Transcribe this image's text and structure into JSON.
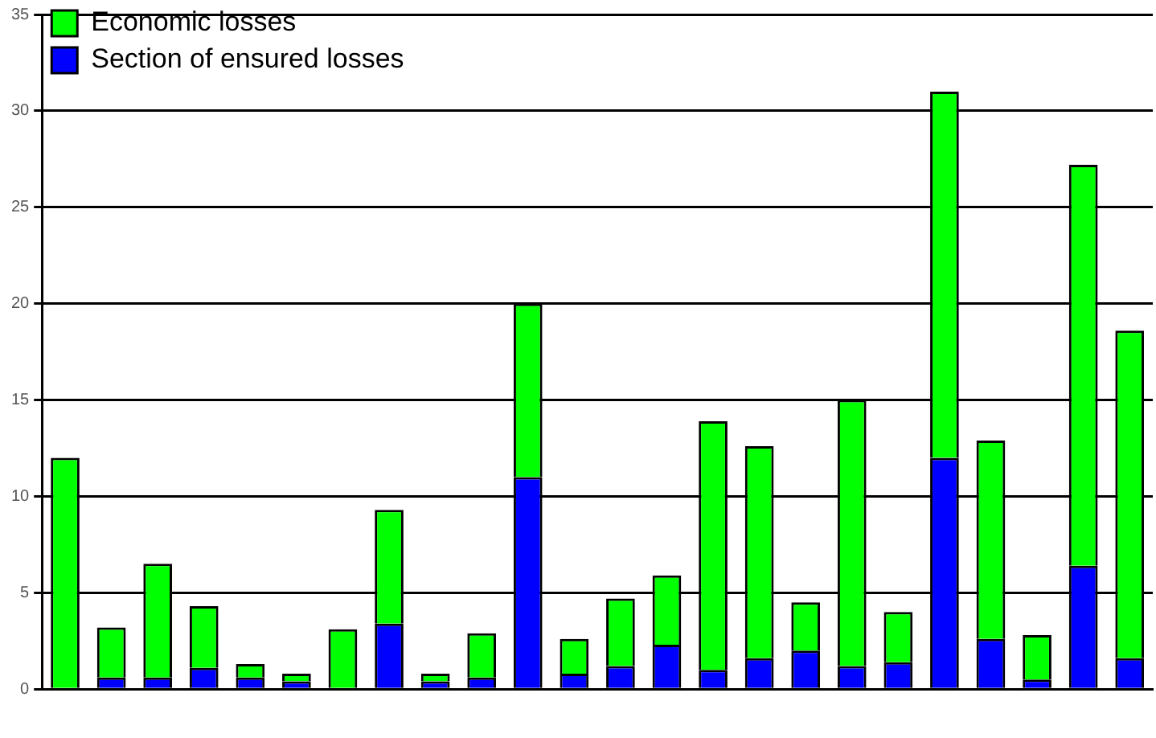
{
  "chart_data": {
    "type": "bar",
    "stacked": true,
    "categories": [
      null,
      null,
      null,
      null,
      null,
      null,
      null,
      null,
      null,
      null,
      null,
      null,
      null,
      null,
      null,
      null,
      null,
      null,
      null,
      null,
      null,
      null,
      null,
      null
    ],
    "series": [
      {
        "name": "Section of ensured losses",
        "color": "#0000ff",
        "values": [
          null,
          0.6,
          0.6,
          1.1,
          0.6,
          0.4,
          null,
          3.4,
          0.4,
          0.6,
          11,
          0.8,
          1.2,
          2.3,
          1.0,
          1.6,
          2.0,
          1.2,
          1.4,
          12,
          2.6,
          0.5,
          6.4,
          1.6
        ]
      },
      {
        "name": "Economic losses",
        "color": "#00ff00",
        "values": [
          12,
          2.6,
          5.9,
          3.2,
          0.7,
          0.4,
          3.1,
          5.9,
          0.4,
          2.3,
          9,
          1.8,
          3.5,
          3.6,
          12.9,
          11,
          2.5,
          13.8,
          2.6,
          19,
          10.3,
          2.3,
          20.8,
          17
        ]
      }
    ],
    "ylim": [
      0,
      35
    ],
    "yticks": [
      0,
      5,
      10,
      15,
      20,
      25,
      30,
      35
    ],
    "grid": "y",
    "legend": "top left"
  }
}
